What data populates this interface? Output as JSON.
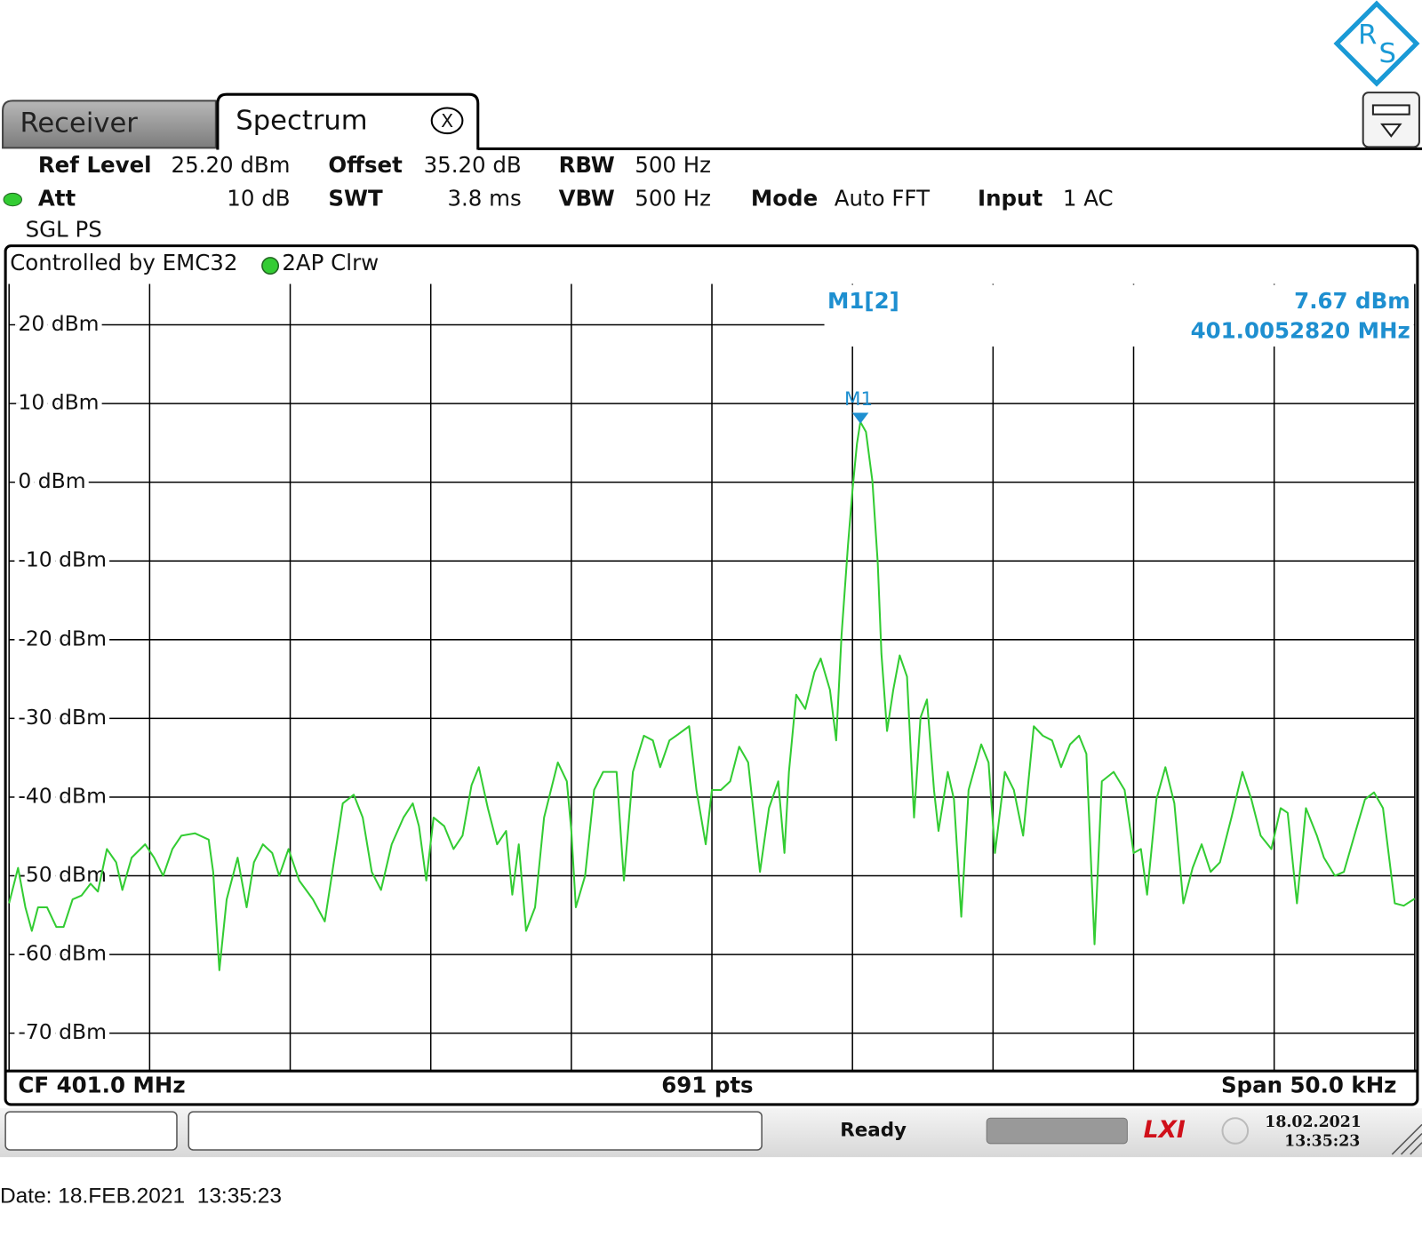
{
  "tabs": [
    "Receiver",
    "Spectrum"
  ],
  "settings": [
    [
      "Ref Level",
      "25.20 dBm"
    ],
    [
      "Offset",
      "35.20 dB"
    ],
    [
      "RBW",
      "500 Hz"
    ],
    [
      "Att",
      "10 dB"
    ],
    [
      "SWT",
      "3.8 ms"
    ],
    [
      "VBW",
      "500 Hz"
    ],
    [
      "Mode",
      "Auto FFT"
    ],
    [
      "Input",
      "1 AC"
    ]
  ],
  "sweep_mode": "SGL PS",
  "status": {
    "state": "Ready",
    "date": "18.02.2021",
    "time": "13:35:23"
  },
  "print_footer": "Date: 18.FEB.2021  13:35:23",
  "chart_data": {
    "type": "line",
    "header": "Controlled by EMC32",
    "footer_left": "CF 401.0 MHz",
    "footer_center": "691 pts",
    "footer_right": "Span 50.0 kHz",
    "xlim": [
      400.975,
      401.025
    ],
    "xticks": [
      400.975,
      400.98,
      400.985,
      400.99,
      400.995,
      401.0,
      401.005,
      401.01,
      401.015,
      401.02,
      401.025
    ],
    "ylim": [
      -74.8,
      25.2
    ],
    "yticks": [
      {
        "value": 20,
        "label": "20 dBm"
      },
      {
        "value": 10,
        "label": "10 dBm"
      },
      {
        "value": 0,
        "label": "0 dBm"
      },
      {
        "value": -10,
        "label": "-10 dBm"
      },
      {
        "value": -20,
        "label": "-20 dBm"
      },
      {
        "value": -30,
        "label": "-30 dBm"
      },
      {
        "value": -40,
        "label": "-40 dBm"
      },
      {
        "value": -50,
        "label": "-50 dBm"
      },
      {
        "value": -60,
        "label": "-60 dBm"
      },
      {
        "value": -70,
        "label": "-70 dBm"
      }
    ],
    "grid": true,
    "x": [
      400.975,
      400.97532,
      400.97558,
      400.97581,
      400.97603,
      400.97635,
      400.97668,
      400.97694,
      400.97726,
      400.97758,
      400.9779,
      400.97816,
      400.97848,
      400.97881,
      400.97903,
      400.97936,
      400.97984,
      400.98016,
      400.98048,
      400.98081,
      400.98113,
      400.98161,
      400.9821,
      400.98226,
      400.98248,
      400.98274,
      400.98313,
      400.98345,
      400.98371,
      400.98403,
      400.98436,
      400.98461,
      400.98494,
      400.98532,
      400.98581,
      400.98623,
      400.98655,
      400.98687,
      400.98726,
      400.98758,
      400.9879,
      400.98823,
      400.98861,
      400.98903,
      400.98936,
      400.98958,
      400.98984,
      400.9901,
      400.99048,
      400.99081,
      400.99113,
      400.99145,
      400.99171,
      400.99203,
      400.99236,
      400.99268,
      400.9929,
      400.99313,
      400.99339,
      400.99371,
      400.99403,
      400.99452,
      400.99484,
      400.995,
      400.99516,
      400.99549,
      400.99581,
      400.99613,
      400.99661,
      400.99687,
      400.99719,
      400.99758,
      400.9979,
      400.99816,
      400.99849,
      400.99881,
      400.99919,
      400.99945,
      400.99978,
      401.0,
      401.00032,
      401.00065,
      401.00097,
      401.00129,
      401.00171,
      401.00203,
      401.00236,
      401.00258,
      401.00274,
      401.003,
      401.00332,
      401.00365,
      401.00387,
      401.0042,
      401.00442,
      401.00461,
      401.00484,
      401.005,
      401.00516,
      401.00528,
      401.00548,
      401.00571,
      401.0059,
      401.00603,
      401.00623,
      401.00645,
      401.00668,
      401.00694,
      401.00719,
      401.00742,
      401.00765,
      401.0079,
      401.00806,
      401.00839,
      401.00861,
      401.00887,
      401.00913,
      401.00958,
      401.00984,
      401.01007,
      401.01042,
      401.01074,
      401.01107,
      401.01145,
      401.01177,
      401.0121,
      401.01242,
      401.01274,
      401.01306,
      401.01332,
      401.01361,
      401.01387,
      401.01429,
      401.01468,
      401.015,
      401.01526,
      401.01548,
      401.01581,
      401.01613,
      401.01645,
      401.01677,
      401.0171,
      401.01742,
      401.01774,
      401.01807,
      401.01848,
      401.01887,
      401.01919,
      401.01952,
      401.0199,
      401.02023,
      401.02048,
      401.02081,
      401.02113,
      401.02152,
      401.02177,
      401.02216,
      401.02248,
      401.0229,
      401.02323,
      401.02355,
      401.02387,
      401.02429,
      401.02461,
      401.025
    ],
    "series": [
      {
        "name": "2AP Clrw",
        "color": "#33cc33",
        "values": [
          -53.5,
          -49,
          -54,
          -57,
          -54,
          -54,
          -56.5,
          -56.5,
          -53,
          -52.5,
          -51,
          -52,
          -46.6,
          -48.3,
          -51.8,
          -47.7,
          -46,
          -47.7,
          -50,
          -46.6,
          -44.9,
          -44.6,
          -45.4,
          -49.5,
          -62,
          -53,
          -47.7,
          -54,
          -48.3,
          -46,
          -47.1,
          -50,
          -46.6,
          -50.6,
          -53,
          -55.8,
          -48.3,
          -40.8,
          -39.7,
          -42.6,
          -49.5,
          -51.8,
          -46,
          -42.6,
          -40.8,
          -43.7,
          -50.6,
          -42.6,
          -43.7,
          -46.6,
          -44.9,
          -38.5,
          -36.2,
          -41.4,
          -46,
          -44.3,
          -52.4,
          -46,
          -57,
          -54,
          -42.6,
          -35.6,
          -38,
          -44.3,
          -54,
          -50,
          -39.1,
          -36.8,
          -36.8,
          -50.6,
          -36.8,
          -32.2,
          -32.8,
          -36.2,
          -32.8,
          -32,
          -31,
          -39.1,
          -46,
          -39.1,
          -39.1,
          -38,
          -33.6,
          -35.6,
          -49.5,
          -41.4,
          -38,
          -47.1,
          -36.8,
          -27,
          -28.8,
          -24.1,
          -22.4,
          -26.4,
          -32.8,
          -19.5,
          -8,
          -1,
          4.9,
          7.67,
          6.4,
          0.1,
          -10.3,
          -21.8,
          -31.6,
          -26.4,
          -22,
          -24.7,
          -42.6,
          -29.9,
          -27.6,
          -39.1,
          -44.3,
          -36.8,
          -40.3,
          -55.2,
          -39.1,
          -33.3,
          -35.6,
          -47.1,
          -36.8,
          -39.1,
          -44.9,
          -31,
          -32.2,
          -32.8,
          -36.2,
          -33.3,
          -32.2,
          -34.5,
          -58.7,
          -38,
          -36.8,
          -39.1,
          -47.1,
          -46.6,
          -52.4,
          -40.3,
          -36.2,
          -40.8,
          -53.5,
          -49,
          -46,
          -49.5,
          -48.3,
          -42.6,
          -36.8,
          -40.3,
          -44.9,
          -46.6,
          -41.4,
          -42,
          -53.5,
          -41.4,
          -44.9,
          -47.7,
          -50,
          -49.5,
          -44.3,
          -40.3,
          -39.4,
          -41.4,
          -53.5,
          -53.8,
          -52.9
        ]
      }
    ],
    "markers": [
      {
        "name": "M1",
        "label": "M1[2]",
        "x": 401.005282,
        "x_label": "401.0052820 MHz",
        "value": 7.67,
        "value_label": "7.67 dBm",
        "color": "#1e8fd0"
      }
    ]
  }
}
